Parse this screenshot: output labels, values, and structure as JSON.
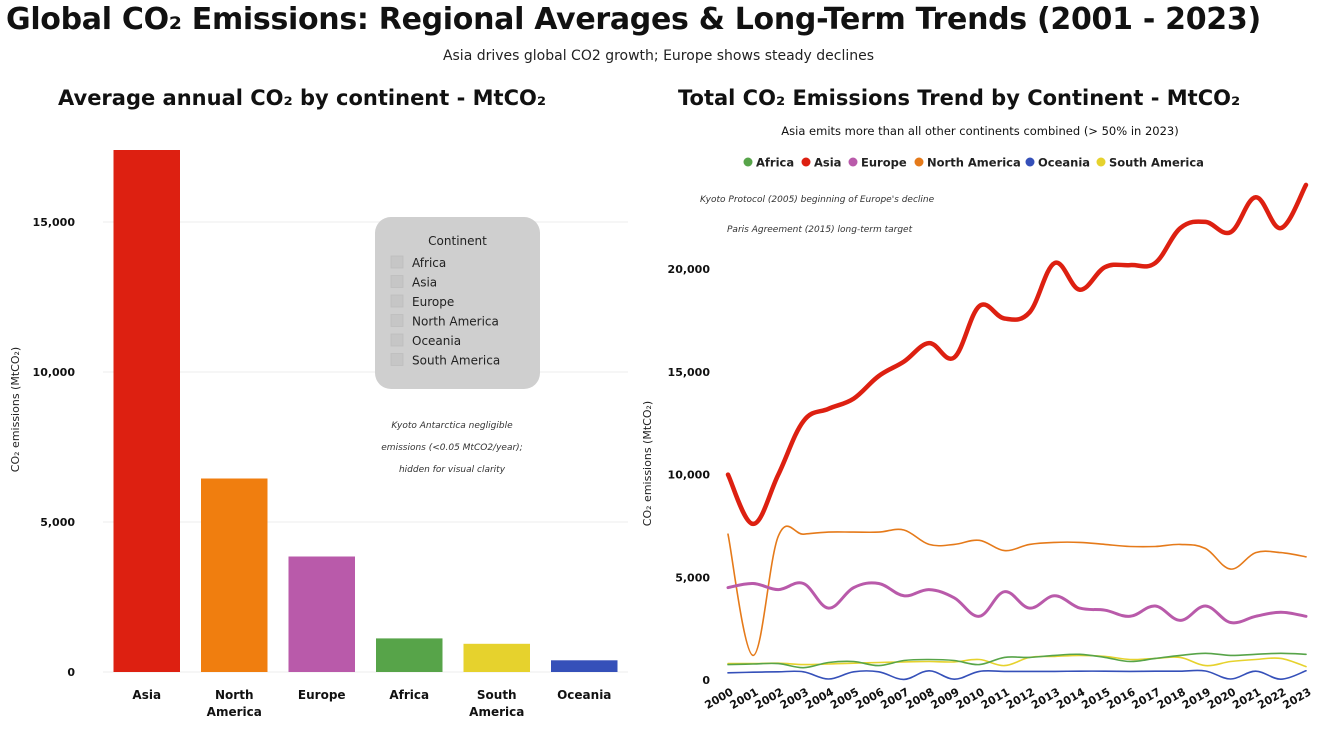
{
  "header": {
    "title": "Global CO₂ Emissions: Regional Averages & Long-Term Trends (2001 - 2023)",
    "subtitle": "Asia drives global CO2 growth; Europe shows steady declines"
  },
  "chart_data": [
    {
      "type": "bar",
      "title": "Average annual CO₂ by continent - MtCO₂",
      "ylabel": "CO₂ emissions (MtCO₂)",
      "ylim": [
        0,
        17500
      ],
      "yticks": [
        0,
        5000,
        10000,
        15000
      ],
      "ytick_labels": [
        "0",
        "5,000",
        "10,000",
        "15,000"
      ],
      "categories": [
        "Asia",
        "North America",
        "Europe",
        "Africa",
        "South America",
        "Oceania"
      ],
      "category_lines": [
        [
          "Asia"
        ],
        [
          "North",
          "America"
        ],
        [
          "Europe"
        ],
        [
          "Africa"
        ],
        [
          "South",
          "America"
        ],
        [
          "Oceania"
        ]
      ],
      "values": [
        17400,
        6450,
        3850,
        1120,
        940,
        390
      ],
      "colors": [
        "#dd2011",
        "#f07e0f",
        "#b95aaa",
        "#57a449",
        "#e6d22d",
        "#3550b9"
      ],
      "legend": {
        "title": "Continent",
        "items": [
          "Africa",
          "Asia",
          "Europe",
          "North America",
          "Oceania",
          "South America"
        ]
      },
      "annotation": [
        "Kyoto Antarctica negligible",
        "emissions (<0.05 MtCO2/year);",
        "hidden for visual clarity"
      ]
    },
    {
      "type": "line",
      "title": "Total CO₂ Emissions Trend by Continent - MtCO₂",
      "subtitle": "Asia emits more than all other continents combined (> 50% in 2023)",
      "ylabel": "CO₂ emissions (MtCO₂)",
      "ylim": [
        0,
        24000
      ],
      "yticks": [
        0,
        5000,
        10000,
        15000,
        20000
      ],
      "ytick_labels": [
        "0",
        "5,000",
        "10,000",
        "15,000",
        "20,000"
      ],
      "x": [
        2000,
        2001,
        2002,
        2003,
        2004,
        2005,
        2006,
        2007,
        2008,
        2009,
        2010,
        2011,
        2012,
        2013,
        2014,
        2015,
        2016,
        2017,
        2018,
        2019,
        2020,
        2021,
        2022,
        2023
      ],
      "x_labels": [
        "2000",
        "2001",
        "2002",
        "2003",
        "2004",
        "2005",
        "2006",
        "2007",
        "2008",
        "2009",
        "2010",
        "2011",
        "2012",
        "2013",
        "2014",
        "2015",
        "2016",
        "2017",
        "2018",
        "2019",
        "2020",
        "2021",
        "2022",
        "2023"
      ],
      "legend": {
        "position": "top",
        "items": [
          "Africa",
          "Asia",
          "Europe",
          "North America",
          "Oceania",
          "South America"
        ]
      },
      "annotations": [
        "Kyoto Protocol (2005) beginning of Europe's decline",
        "Paris Agreement (2015) long-term target"
      ],
      "series": [
        {
          "name": "Africa",
          "color": "#57a449",
          "width": 1.6,
          "values": [
            750,
            780,
            800,
            600,
            850,
            900,
            700,
            950,
            1000,
            950,
            750,
            1100,
            1100,
            1200,
            1250,
            1100,
            900,
            1050,
            1200,
            1300,
            1200,
            1250,
            1300,
            1250
          ]
        },
        {
          "name": "Asia",
          "color": "#dd2011",
          "width": 4.5,
          "values": [
            10000,
            7600,
            10000,
            12600,
            13200,
            13700,
            14800,
            15500,
            16400,
            15700,
            18200,
            17600,
            17900,
            20300,
            19000,
            20100,
            20200,
            20300,
            22000,
            22300,
            21800,
            23500,
            22000,
            24100
          ]
        },
        {
          "name": "Europe",
          "color": "#b95aaa",
          "width": 3,
          "values": [
            4500,
            4700,
            4400,
            4700,
            3500,
            4500,
            4700,
            4100,
            4400,
            4000,
            3100,
            4300,
            3500,
            4100,
            3500,
            3400,
            3100,
            3600,
            2900,
            3600,
            2800,
            3100,
            3300,
            3100
          ]
        },
        {
          "name": "North America",
          "color": "#e57a1a",
          "width": 1.6,
          "values": [
            7100,
            1200,
            7000,
            7100,
            7200,
            7200,
            7200,
            7300,
            6600,
            6600,
            6800,
            6300,
            6600,
            6700,
            6700,
            6600,
            6500,
            6500,
            6600,
            6400,
            5400,
            6200,
            6200,
            6000
          ]
        },
        {
          "name": "Oceania",
          "color": "#3550b9",
          "width": 1.6,
          "values": [
            350,
            380,
            400,
            400,
            50,
            400,
            400,
            30,
            450,
            40,
            420,
            420,
            420,
            420,
            430,
            430,
            420,
            430,
            430,
            440,
            50,
            430,
            40,
            450
          ]
        },
        {
          "name": "South America",
          "color": "#e6d22d",
          "width": 1.6,
          "values": [
            800,
            800,
            820,
            750,
            780,
            820,
            850,
            880,
            900,
            880,
            1000,
            700,
            1100,
            1150,
            1200,
            1150,
            1000,
            1050,
            1100,
            700,
            900,
            1000,
            1050,
            650
          ]
        }
      ]
    }
  ]
}
